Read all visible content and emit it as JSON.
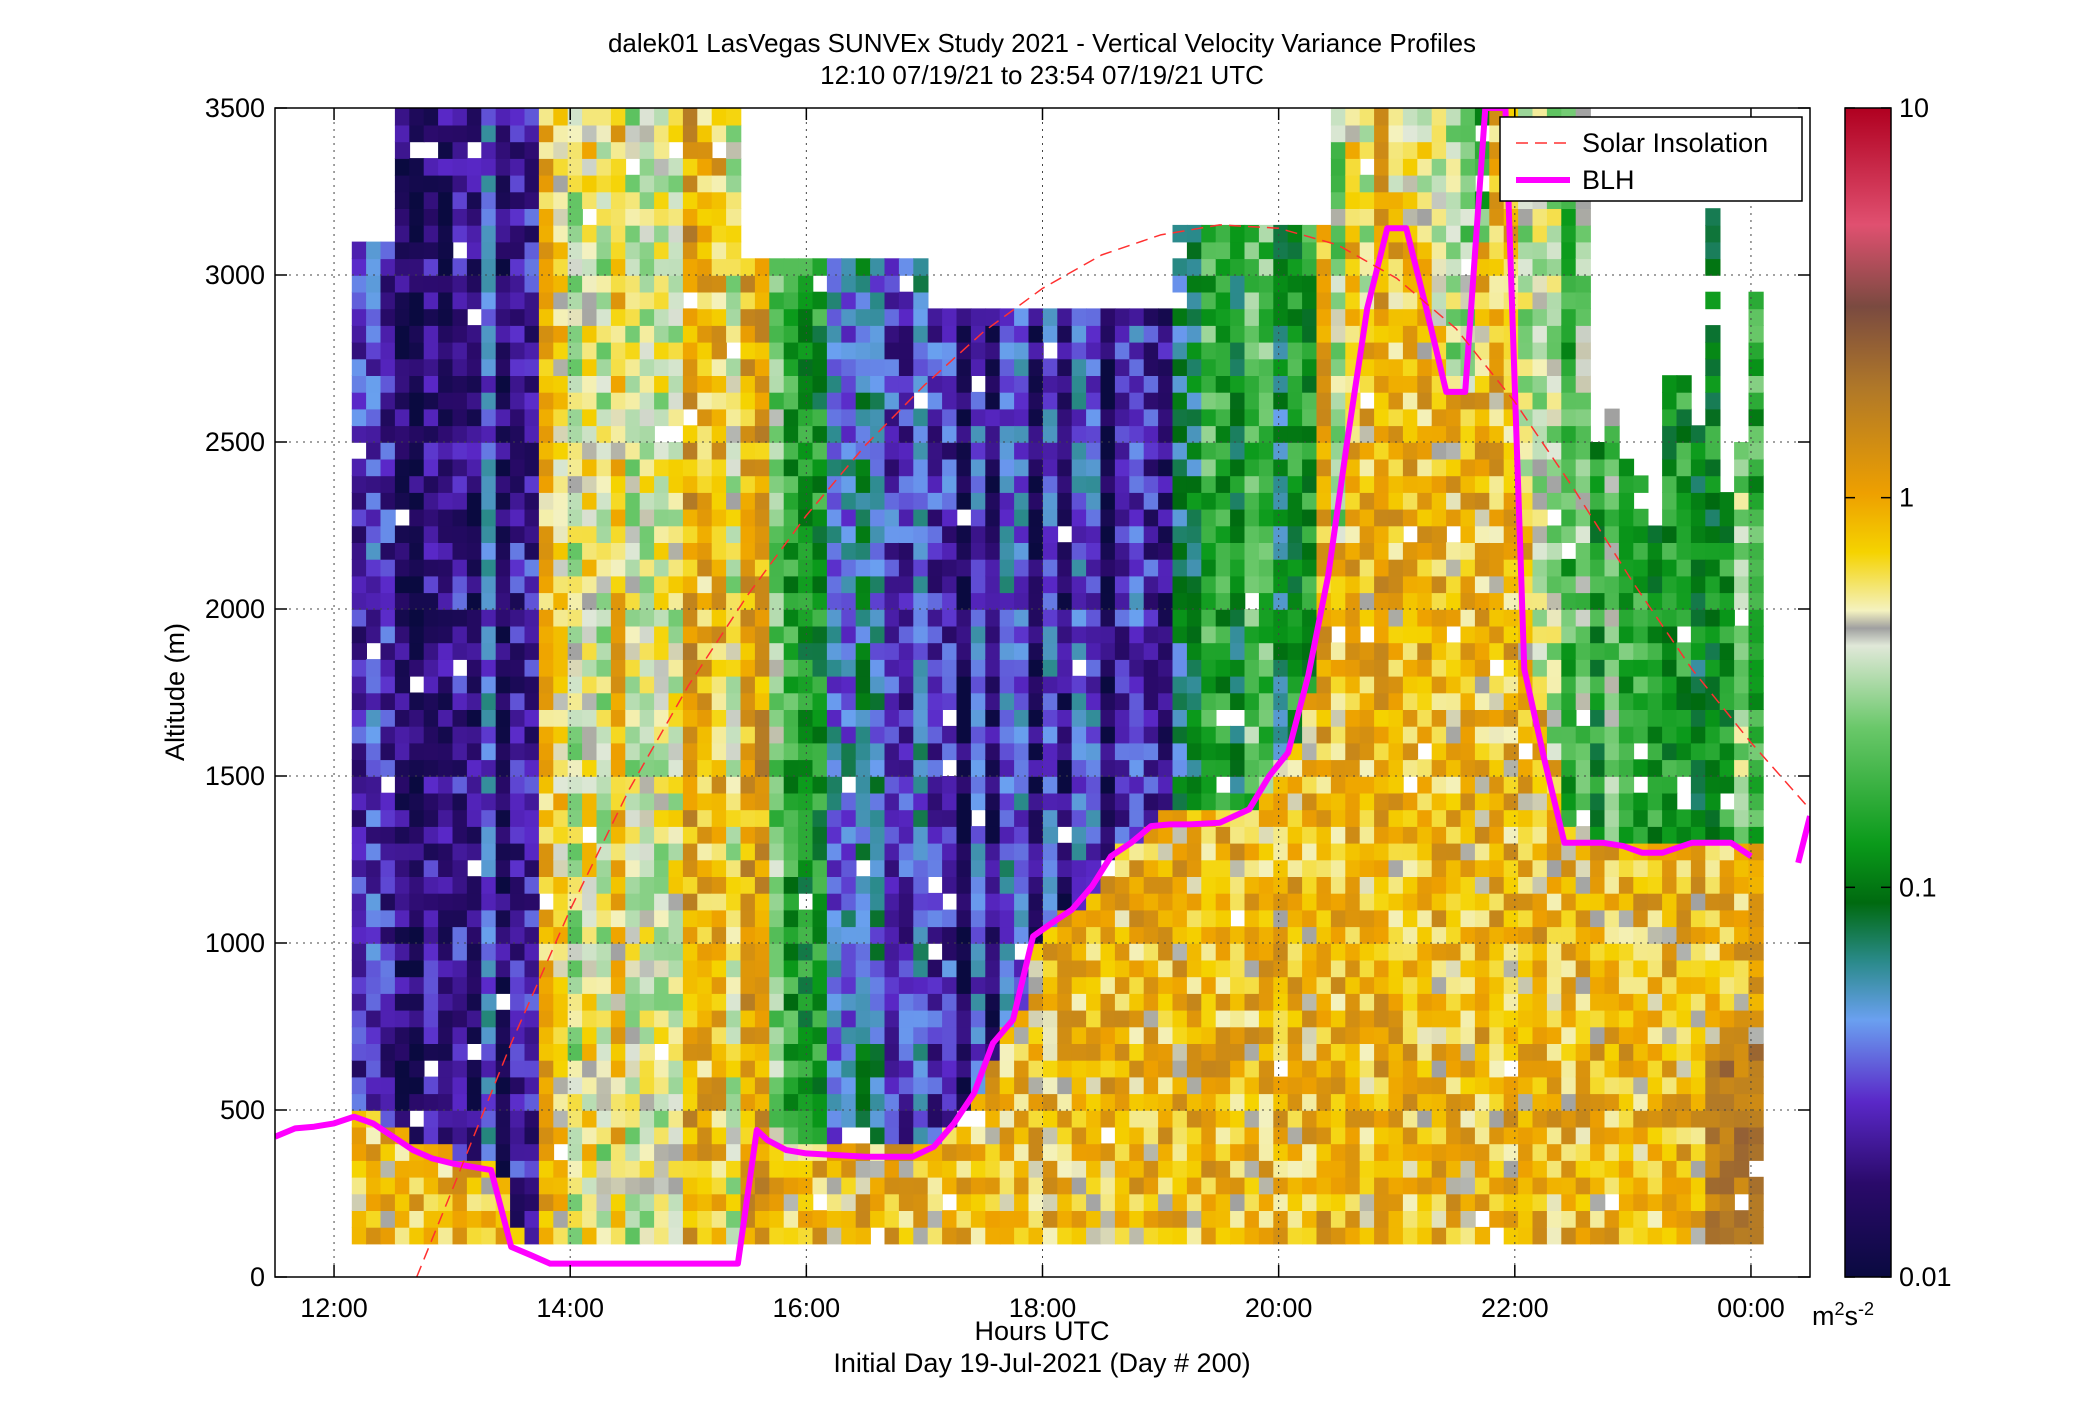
{
  "chart_data": {
    "type": "heatmap",
    "title": "dalek01 LasVegas SUNVEx Study 2021 - Vertical Velocity Variance Profiles",
    "subtitle": "12:10 07/19/21 to 23:54 07/19/21  UTC",
    "xlabel": "Hours UTC",
    "xlabel2": "Initial Day 19-Jul-2021 (Day # 200)",
    "ylabel": "Altitude (m)",
    "xlim": [
      11.5,
      24.5
    ],
    "ylim": [
      0,
      3500
    ],
    "x_ticks": [
      12,
      14,
      16,
      18,
      20,
      22,
      24
    ],
    "x_tick_labels": [
      "12:00",
      "14:00",
      "16:00",
      "18:00",
      "20:00",
      "22:00",
      "00:00"
    ],
    "y_ticks": [
      0,
      500,
      1000,
      1500,
      2000,
      2500,
      3000,
      3500
    ],
    "y_tick_labels": [
      "0",
      "500",
      "1000",
      "1500",
      "2000",
      "2500",
      "3000",
      "3500"
    ],
    "grid": true,
    "colorbar": {
      "scale": "log",
      "range": [
        0.01,
        10
      ],
      "ticks": [
        0.01,
        0.1,
        1,
        10
      ],
      "tick_labels": [
        "0.01",
        "0.1",
        "1",
        "10"
      ],
      "unit_base": "m",
      "unit_sup1": "2",
      "unit_mid": "s",
      "unit_sup2": "-2"
    },
    "legend": {
      "position": "top-right",
      "entries": [
        {
          "label": "Solar Insolation",
          "color": "#ff3030",
          "style": "dashed"
        },
        {
          "label": "BLH",
          "color": "#ff00ff",
          "style": "solid"
        }
      ]
    },
    "series": [
      {
        "name": "BLH",
        "color": "#ff00ff",
        "x": [
          11.5,
          11.67,
          11.83,
          12.0,
          12.17,
          12.33,
          12.5,
          12.67,
          12.83,
          13.0,
          13.17,
          13.33,
          13.5,
          13.67,
          13.83,
          14.0,
          14.5,
          15.0,
          15.42,
          15.58,
          15.67,
          15.83,
          16.0,
          16.5,
          16.9,
          17.08,
          17.25,
          17.42,
          17.58,
          17.75,
          17.92,
          18.08,
          18.25,
          18.42,
          18.58,
          18.75,
          18.92,
          19.08,
          19.25,
          19.5,
          19.75,
          19.92,
          20.08,
          20.25,
          20.42,
          20.58,
          20.75,
          20.92,
          21.08,
          21.25,
          21.42,
          21.58,
          21.75,
          21.92,
          22.08,
          22.25,
          22.42,
          22.58,
          22.75,
          22.92,
          23.08,
          23.25,
          23.5,
          23.67,
          23.83,
          24.0
        ],
        "y": [
          420,
          445,
          450,
          460,
          480,
          460,
          420,
          380,
          355,
          340,
          330,
          320,
          90,
          65,
          40,
          40,
          40,
          40,
          40,
          440,
          410,
          380,
          370,
          360,
          360,
          390,
          460,
          550,
          700,
          770,
          1020,
          1060,
          1100,
          1170,
          1260,
          1300,
          1350,
          1355,
          1355,
          1360,
          1400,
          1500,
          1570,
          1800,
          2100,
          2500,
          2900,
          3140,
          3140,
          2900,
          2650,
          2650,
          3500,
          3500,
          1820,
          1550,
          1300,
          1300,
          1300,
          1290,
          1270,
          1270,
          1300,
          1300,
          1300,
          1260
        ]
      },
      {
        "name": "BLH",
        "color": "#ff00ff",
        "x": [
          24.4,
          24.5
        ],
        "y": [
          1240,
          1380
        ]
      },
      {
        "name": "Solar Insolation",
        "color": "#ff3030",
        "x": [
          12.7,
          13.0,
          13.5,
          14.0,
          14.5,
          15.0,
          15.5,
          16.0,
          16.5,
          17.0,
          17.5,
          18.0,
          18.5,
          19.0,
          19.5,
          20.0,
          20.5,
          21.0,
          21.5,
          22.0,
          22.5,
          23.0,
          23.5,
          24.0,
          24.5
        ],
        "y": [
          0,
          260,
          700,
          1100,
          1460,
          1770,
          2040,
          2280,
          2490,
          2670,
          2830,
          2960,
          3060,
          3120,
          3150,
          3140,
          3090,
          2990,
          2840,
          2620,
          2360,
          2080,
          1820,
          1600,
          1400
        ]
      }
    ]
  }
}
